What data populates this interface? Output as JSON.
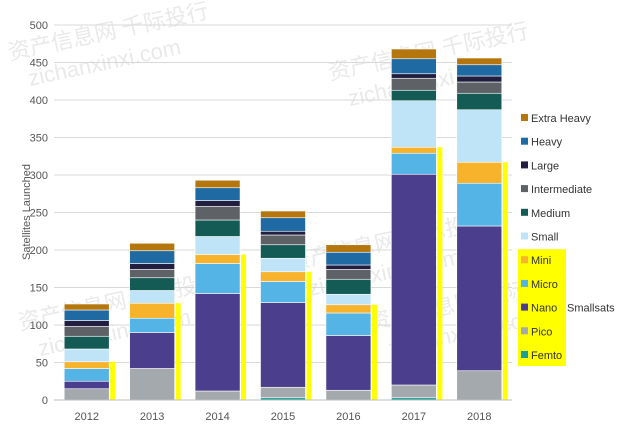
{
  "watermark": {
    "line1": "资产信息网 千际投行",
    "line2": "zichanxinxi.com"
  },
  "chart_data": {
    "type": "bar",
    "stacked": true,
    "title": "",
    "xlabel": "",
    "ylabel": "Satellites Launched",
    "ylim": [
      0,
      500
    ],
    "yticks": [
      0,
      50,
      100,
      150,
      200,
      250,
      300,
      350,
      400,
      450,
      500
    ],
    "grid": true,
    "legend_position": "right",
    "categories": [
      "2012",
      "2013",
      "2014",
      "2015",
      "2016",
      "2017",
      "2018"
    ],
    "series": [
      {
        "name": "Femto",
        "color": "#1a9e96",
        "values": [
          0,
          0,
          0,
          3,
          0,
          3,
          0
        ]
      },
      {
        "name": "Pico",
        "color": "#a3a9ad",
        "values": [
          15,
          42,
          12,
          14,
          13,
          17,
          39
        ]
      },
      {
        "name": "Nano",
        "color": "#4b3e8c",
        "values": [
          10,
          48,
          130,
          113,
          73,
          281,
          193
        ]
      },
      {
        "name": "Micro",
        "color": "#55b4e6",
        "values": [
          17,
          19,
          40,
          28,
          30,
          28,
          57
        ]
      },
      {
        "name": "Mini",
        "color": "#f7b32b",
        "values": [
          9,
          20,
          12,
          13,
          11,
          8,
          28
        ]
      },
      {
        "name": "Small",
        "color": "#bfe3f7",
        "values": [
          17,
          17,
          24,
          18,
          14,
          62,
          70
        ]
      },
      {
        "name": "Medium",
        "color": "#145a55",
        "values": [
          17,
          17,
          22,
          18,
          20,
          14,
          22
        ]
      },
      {
        "name": "Intermediate",
        "color": "#5e6266",
        "values": [
          13,
          11,
          18,
          13,
          13,
          16,
          15
        ]
      },
      {
        "name": "Large",
        "color": "#221e40",
        "values": [
          8,
          8,
          8,
          5,
          6,
          6,
          8
        ]
      },
      {
        "name": "Heavy",
        "color": "#1f6aa3",
        "values": [
          14,
          17,
          17,
          18,
          17,
          20,
          15
        ]
      },
      {
        "name": "Extra Heavy",
        "color": "#b5760e",
        "values": [
          8,
          10,
          10,
          9,
          10,
          13,
          9
        ]
      }
    ],
    "smallsats_bracket": {
      "label": "Smallsats",
      "color": "#ffff00",
      "series_included": [
        "Femto",
        "Pico",
        "Nano",
        "Micro",
        "Mini"
      ]
    }
  }
}
